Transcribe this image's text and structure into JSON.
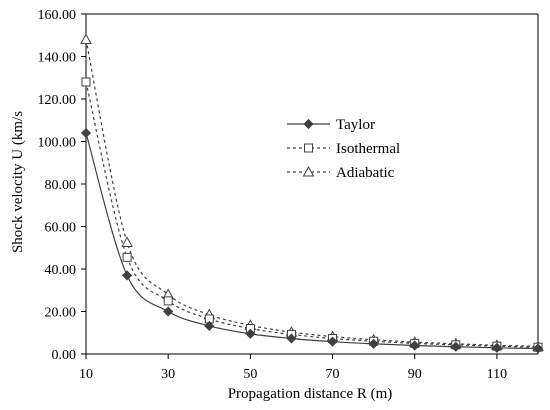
{
  "chart_data": {
    "type": "line",
    "title": "",
    "xlabel": "Propagation distance R (m)",
    "ylabel": "Shock velocity U (km/s",
    "xlim": [
      10,
      120
    ],
    "ylim": [
      0,
      160
    ],
    "x_ticks": [
      10,
      30,
      50,
      70,
      90,
      110
    ],
    "x_tick_labels": [
      "10",
      "30",
      "50",
      "70",
      "90",
      "110"
    ],
    "y_ticks": [
      0,
      20,
      40,
      60,
      80,
      100,
      120,
      140,
      160
    ],
    "y_tick_labels": [
      "0.00",
      "20.00",
      "40.00",
      "60.00",
      "80.00",
      "100.00",
      "120.00",
      "140.00",
      "160.00"
    ],
    "grid": false,
    "legend_position": "center-right",
    "x": [
      10,
      20,
      30,
      40,
      50,
      60,
      70,
      80,
      90,
      100,
      110,
      120
    ],
    "series": [
      {
        "name": "Taylor",
        "marker": "diamond",
        "line_style": "solid",
        "color": "#404040",
        "values": [
          104,
          37,
          20,
          13.2,
          9.5,
          7.3,
          5.8,
          4.8,
          4.0,
          3.4,
          2.9,
          2.6
        ]
      },
      {
        "name": "Isothermal",
        "marker": "square",
        "line_style": "dashed",
        "color": "#404040",
        "values": [
          128,
          45.5,
          25,
          16.5,
          12,
          9.2,
          7.3,
          6.0,
          5.0,
          4.3,
          3.7,
          3.2
        ]
      },
      {
        "name": "Adiabatic",
        "marker": "triangle",
        "line_style": "dashed",
        "color": "#404040",
        "values": [
          148,
          52.5,
          28,
          18.5,
          13.5,
          10.3,
          8.2,
          6.7,
          5.6,
          4.8,
          4.1,
          3.6
        ]
      }
    ]
  }
}
